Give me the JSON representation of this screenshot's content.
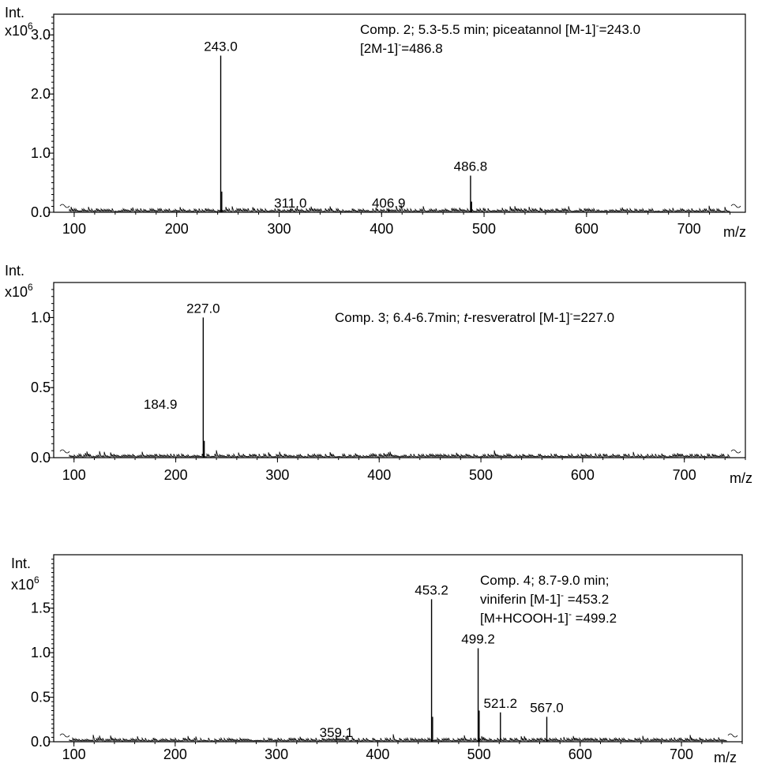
{
  "chart_data": [
    {
      "type": "line",
      "ylabel": "Int.",
      "yunit": "x10",
      "yexp": "6",
      "xlabel": "m/z",
      "xlim": [
        80,
        755
      ],
      "ylim": [
        0,
        3.35
      ],
      "xticks": [
        "100",
        "200",
        "300",
        "400",
        "500",
        "600",
        "700"
      ],
      "yticks": [
        "0.0",
        "1.0",
        "2.0",
        "3.0"
      ],
      "annotation_lines": [
        {
          "pre": "Comp. 2; 5.3-5.5 min; piceatannol [M-1]",
          "sup": "-",
          "post": "=243.0"
        },
        {
          "pre": "[2M-1]",
          "sup": "-",
          "post": "=486.8"
        }
      ],
      "peaks": [
        {
          "mz": 243.0,
          "intensity": 2.65,
          "label": "243.0"
        },
        {
          "mz": 244.0,
          "intensity": 0.35,
          "label": ""
        },
        {
          "mz": 486.8,
          "intensity": 0.62,
          "label": "486.8"
        },
        {
          "mz": 487.8,
          "intensity": 0.18,
          "label": ""
        },
        {
          "mz": 311.0,
          "intensity": 0.05,
          "label": "311.0"
        },
        {
          "mz": 406.9,
          "intensity": 0.05,
          "label": "406.9"
        }
      ]
    },
    {
      "type": "line",
      "ylabel": "Int.",
      "yunit": "x10",
      "yexp": "6",
      "xlabel": "m/z",
      "xlim": [
        80,
        760
      ],
      "ylim": [
        0,
        1.25
      ],
      "xticks": [
        "100",
        "200",
        "300",
        "400",
        "500",
        "600",
        "700"
      ],
      "yticks": [
        "0.0",
        "0.5",
        "1.0"
      ],
      "annotation_lines": [
        {
          "pre": "Comp. 3; 6.4-6.7min; ",
          "ital": "t",
          "pre2": "-resveratrol [M-1]",
          "sup": "-",
          "post": "=227.0"
        }
      ],
      "peaks": [
        {
          "mz": 227.0,
          "intensity": 1.0,
          "label": "227.0"
        },
        {
          "mz": 228.0,
          "intensity": 0.12,
          "label": ""
        },
        {
          "mz": 184.9,
          "intensity": 0.0,
          "label": "184.9"
        }
      ]
    },
    {
      "type": "line",
      "ylabel": "Int.",
      "yunit": "x10",
      "yexp": "6",
      "xlabel": "m/z",
      "xlim": [
        80,
        760
      ],
      "ylim": [
        0,
        2.1
      ],
      "xticks": [
        "100",
        "200",
        "300",
        "400",
        "500",
        "600",
        "700"
      ],
      "yticks": [
        "0.0",
        "0.5",
        "1.0",
        "1.5"
      ],
      "annotation_lines": [
        {
          "pre": "Comp. 4; 8.7-9.0 min;",
          "sup": "",
          "post": ""
        },
        {
          "pre": "viniferin [M-1]",
          "sup": "-",
          "post": " =453.2"
        },
        {
          "pre": "[M+HCOOH-1]",
          "sup": "-",
          "post": " =499.2"
        }
      ],
      "peaks": [
        {
          "mz": 453.2,
          "intensity": 1.6,
          "label": "453.2"
        },
        {
          "mz": 454.2,
          "intensity": 0.28,
          "label": ""
        },
        {
          "mz": 499.2,
          "intensity": 1.05,
          "label": "499.2"
        },
        {
          "mz": 500.2,
          "intensity": 0.35,
          "label": ""
        },
        {
          "mz": 521.2,
          "intensity": 0.33,
          "label": "521.2"
        },
        {
          "mz": 567.0,
          "intensity": 0.28,
          "label": "567.0"
        },
        {
          "mz": 359.1,
          "intensity": 0.06,
          "label": "359.1"
        }
      ]
    }
  ]
}
